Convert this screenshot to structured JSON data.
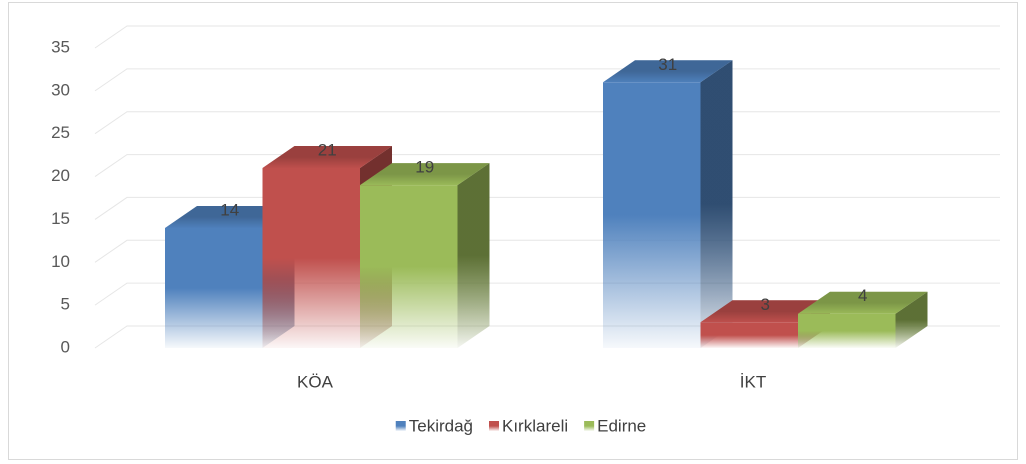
{
  "chart_data": {
    "type": "bar3d",
    "categories": [
      "KÖA",
      "İKT"
    ],
    "series": [
      {
        "name": "Tekirdağ",
        "color": "#4f81bd",
        "values": [
          14,
          31
        ]
      },
      {
        "name": "Kırklareli",
        "color": "#c0504d",
        "values": [
          21,
          3
        ]
      },
      {
        "name": "Edirne",
        "color": "#9bbb59",
        "values": [
          19,
          4
        ]
      }
    ],
    "ylim": [
      0,
      35
    ],
    "yticks": [
      0,
      5,
      10,
      15,
      20,
      25,
      30,
      35
    ],
    "grid": true,
    "legend": "bottom"
  }
}
